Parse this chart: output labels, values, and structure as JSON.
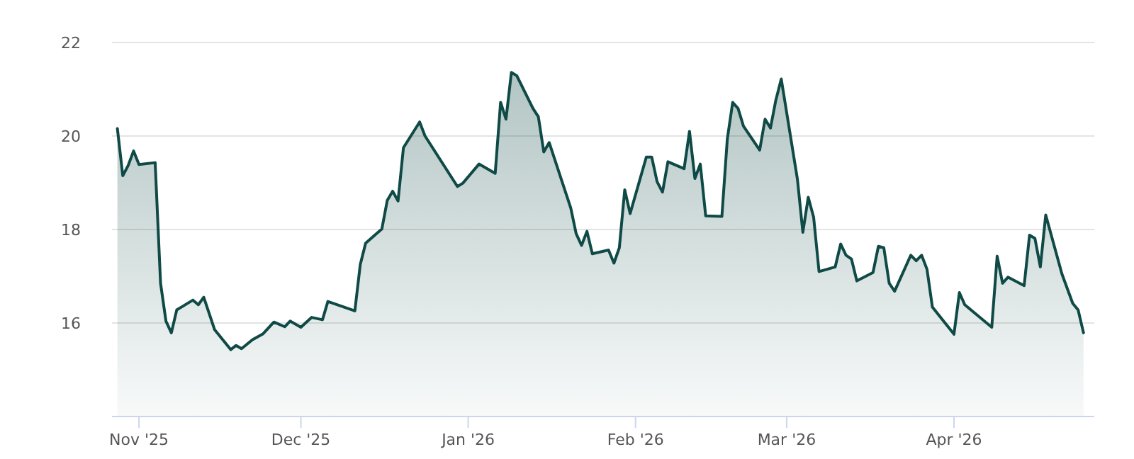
{
  "chart_data": {
    "type": "area",
    "xlim": [
      "2025-10-27",
      "2026-04-27"
    ],
    "xticks": [
      {
        "value": "2025-11-01",
        "label": "Nov '25"
      },
      {
        "value": "2025-12-01",
        "label": "Dec '25"
      },
      {
        "value": "2026-01-01",
        "label": "Jan '26"
      },
      {
        "value": "2026-02-01",
        "label": "Feb '26"
      },
      {
        "value": "2026-03-01",
        "label": "Mar '26"
      },
      {
        "value": "2026-04-01",
        "label": "Apr '26"
      }
    ],
    "ylim": [
      14,
      22
    ],
    "yticks": [
      16,
      18,
      20,
      22
    ],
    "grid": "y",
    "marker": "none",
    "line_style": "solid",
    "x": [
      "2025-10-28",
      "2025-10-29",
      "2025-10-30",
      "2025-10-31",
      "2025-11-01",
      "2025-11-04",
      "2025-11-05",
      "2025-11-06",
      "2025-11-07",
      "2025-11-08",
      "2025-11-11",
      "2025-11-12",
      "2025-11-13",
      "2025-11-15",
      "2025-11-18",
      "2025-11-19",
      "2025-11-20",
      "2025-11-22",
      "2025-11-24",
      "2025-11-26",
      "2025-11-28",
      "2025-11-29",
      "2025-12-01",
      "2025-12-03",
      "2025-12-05",
      "2025-12-06",
      "2025-12-11",
      "2025-12-12",
      "2025-12-13",
      "2025-12-16",
      "2025-12-17",
      "2025-12-18",
      "2025-12-19",
      "2025-12-20",
      "2025-12-23",
      "2025-12-24",
      "2025-12-30",
      "2025-12-31",
      "2026-01-03",
      "2026-01-06",
      "2026-01-07",
      "2026-01-08",
      "2026-01-09",
      "2026-01-10",
      "2026-01-13",
      "2026-01-14",
      "2026-01-15",
      "2026-01-16",
      "2026-01-20",
      "2026-01-21",
      "2026-01-22",
      "2026-01-23",
      "2026-01-24",
      "2026-01-27",
      "2026-01-28",
      "2026-01-29",
      "2026-01-30",
      "2026-01-31",
      "2026-02-03",
      "2026-02-04",
      "2026-02-05",
      "2026-02-06",
      "2026-02-07",
      "2026-02-10",
      "2026-02-11",
      "2026-02-12",
      "2026-02-13",
      "2026-02-14",
      "2026-02-17",
      "2026-02-18",
      "2026-02-19",
      "2026-02-20",
      "2026-02-21",
      "2026-02-24",
      "2026-02-25",
      "2026-02-26",
      "2026-02-27",
      "2026-02-28",
      "2026-03-03",
      "2026-03-04",
      "2026-03-05",
      "2026-03-06",
      "2026-03-07",
      "2026-03-10",
      "2026-03-11",
      "2026-03-12",
      "2026-03-13",
      "2026-03-14",
      "2026-03-17",
      "2026-03-18",
      "2026-03-19",
      "2026-03-20",
      "2026-03-21",
      "2026-03-24",
      "2026-03-25",
      "2026-03-26",
      "2026-03-27",
      "2026-03-28",
      "2026-04-01",
      "2026-04-02",
      "2026-04-03",
      "2026-04-08",
      "2026-04-09",
      "2026-04-10",
      "2026-04-11",
      "2026-04-14",
      "2026-04-15",
      "2026-04-16",
      "2026-04-17",
      "2026-04-18",
      "2026-04-21",
      "2026-04-23",
      "2026-04-24",
      "2026-04-25"
    ],
    "series": [
      {
        "color": "#0f4a46",
        "values": [
          20.16,
          19.15,
          19.37,
          19.68,
          19.39,
          19.43,
          16.85,
          16.04,
          15.79,
          16.28,
          16.49,
          16.39,
          16.55,
          15.86,
          15.43,
          15.52,
          15.45,
          15.64,
          15.77,
          16.02,
          15.92,
          16.04,
          15.91,
          16.12,
          16.07,
          16.46,
          16.26,
          17.25,
          17.71,
          18.01,
          18.62,
          18.82,
          18.61,
          19.75,
          20.3,
          20.0,
          18.92,
          18.99,
          19.4,
          19.2,
          20.72,
          20.36,
          21.36,
          21.29,
          20.59,
          20.41,
          19.66,
          19.86,
          18.46,
          17.91,
          17.66,
          17.96,
          17.48,
          17.56,
          17.28,
          17.61,
          18.85,
          18.34,
          19.55,
          19.55,
          19.02,
          18.8,
          19.45,
          19.3,
          20.1,
          19.09,
          19.4,
          18.29,
          18.28,
          19.93,
          20.72,
          20.59,
          20.21,
          19.7,
          20.36,
          20.17,
          20.77,
          21.22,
          19.07,
          17.94,
          18.69,
          18.26,
          17.1,
          17.2,
          17.69,
          17.45,
          17.37,
          16.9,
          17.08,
          17.64,
          17.61,
          16.85,
          16.68,
          17.45,
          17.33,
          17.45,
          17.15,
          16.34,
          15.76,
          16.65,
          16.39,
          15.91,
          17.43,
          16.85,
          16.98,
          16.8,
          17.88,
          17.81,
          17.2,
          18.31,
          17.05,
          16.42,
          16.28,
          15.79
        ]
      }
    ]
  }
}
